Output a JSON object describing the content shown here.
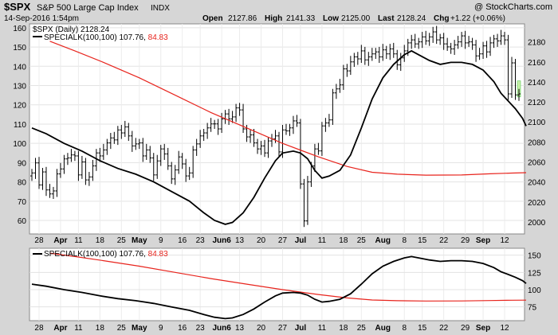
{
  "header": {
    "symbol": "$SPX",
    "name": "S&P 500 Large Cap Index",
    "exchange": "INDX",
    "copyright": "@ StockCharts.com",
    "datetime": "14-Sep-2016 1:54pm",
    "open_label": "Open",
    "open_value": "2127.86",
    "high_label": "High",
    "high_value": "2141.33",
    "low_label": "Low",
    "low_value": "2125.00",
    "last_label": "Last",
    "last_value": "2128.24",
    "chg_label": "Chg",
    "chg_value": "+1.22 (+0.06%)"
  },
  "colors": {
    "price": "#000000",
    "special_k": "#000000",
    "signal": "#e8241d",
    "last_bar_fill": "#c8f0a8",
    "panel_bg": "#ffffff",
    "frame_bg": "#d6d6d6"
  },
  "chart_data": [
    {
      "type": "ohlc",
      "panel": "main",
      "legend": [
        "$SPX (Daily) 2128.24",
        "SPECIALK(100,100) 107.76, 84.83"
      ],
      "x_tick_labels": [
        "28",
        "Apr",
        "11",
        "18",
        "25",
        "May",
        "9",
        "16",
        "23",
        "Jun6",
        "13",
        "20",
        "27",
        "Jul",
        "11",
        "18",
        "25",
        "Aug",
        "8",
        "15",
        "22",
        "29",
        "Sep",
        "12"
      ],
      "left_axis": {
        "ticks": [
          60,
          70,
          80,
          90,
          100,
          110,
          120,
          130,
          140,
          150,
          160
        ],
        "ylim": [
          53,
          162
        ]
      },
      "right_axis": {
        "ticks": [
          2000,
          2020,
          2040,
          2060,
          2080,
          2100,
          2120,
          2140,
          2160,
          2180
        ],
        "ylim": [
          1988,
          2198
        ]
      },
      "price_series": [
        [
          2049,
          2059,
          2037,
          2050,
          2032,
          2028,
          2031,
          2048,
          2053,
          2063,
          2064,
          2067,
          2066,
          2047,
          2060,
          2042,
          2045,
          2056,
          2069,
          2066,
          2072,
          2079,
          2084,
          2082,
          2092,
          2089,
          2095,
          2086,
          2076,
          2078,
          2079,
          2066,
          2072,
          2064,
          2047,
          2061,
          2073,
          2068,
          2056,
          2043,
          2052,
          2065,
          2058,
          2046,
          2049,
          2072,
          2078,
          2086,
          2089,
          2094,
          2098,
          2098,
          2093,
          2103,
          2108,
          2103,
          2105,
          2114,
          2112,
          2093,
          2085,
          2087,
          2079,
          2073,
          2076,
          2069,
          2081,
          2083,
          2086,
          2070,
          2092,
          2091,
          2094,
          2101,
          2099,
          2038,
          2001,
          2040,
          2056,
          2073,
          2071,
          2096,
          2099,
          2102,
          2129,
          2133,
          2137,
          2153,
          2151,
          2160,
          2165,
          2163,
          2171,
          2162,
          2165,
          2168,
          2170,
          2165,
          2172,
          2168,
          2173,
          2168,
          2157,
          2164,
          2171,
          2179,
          2182,
          2178,
          2180,
          2185,
          2181,
          2185,
          2190,
          2182,
          2184,
          2178,
          2175,
          2173,
          2177,
          2180,
          2186,
          2179,
          2180,
          2177,
          2166,
          2168,
          2176,
          2170,
          2179,
          2183,
          2181,
          2186,
          2182,
          2128,
          2159,
          2127,
          2128
        ],
        [
          2049,
          2059,
          2037,
          2050,
          2032,
          2028,
          2031,
          2048,
          2053,
          2063,
          2064,
          2067,
          2066,
          2047,
          2060,
          2042,
          2045,
          2056,
          2069,
          2066,
          2072,
          2079,
          2084,
          2082,
          2092,
          2089,
          2095,
          2086,
          2076,
          2078,
          2079,
          2066,
          2072,
          2064,
          2047,
          2061,
          2073,
          2068,
          2056,
          2043,
          2052,
          2065,
          2058,
          2046,
          2049,
          2072,
          2078,
          2086,
          2089,
          2094,
          2098,
          2098,
          2093,
          2103,
          2108,
          2103,
          2105,
          2114,
          2112,
          2093,
          2085,
          2087,
          2079,
          2073,
          2076,
          2069,
          2081,
          2083,
          2086,
          2070,
          2092,
          2091,
          2094,
          2101,
          2099,
          2038,
          2001,
          2040,
          2056,
          2073,
          2071,
          2096,
          2099,
          2102,
          2129,
          2133,
          2137,
          2153,
          2151,
          2160,
          2165,
          2163,
          2171,
          2162,
          2165,
          2168,
          2170,
          2165,
          2172,
          2168,
          2173,
          2168,
          2157,
          2164,
          2171,
          2179,
          2182,
          2178,
          2180,
          2185,
          2181,
          2185,
          2190,
          2182,
          2184,
          2178,
          2175,
          2173,
          2177,
          2180,
          2186,
          2179,
          2180,
          2177,
          2166,
          2168,
          2176,
          2170,
          2179,
          2183,
          2181,
          2186,
          2182,
          2128,
          2159,
          2127,
          2128
        ]
      ],
      "close_values": [
        2049,
        2059,
        2037,
        2050,
        2032,
        2028,
        2031,
        2048,
        2053,
        2063,
        2064,
        2067,
        2066,
        2047,
        2060,
        2042,
        2045,
        2056,
        2069,
        2066,
        2072,
        2079,
        2084,
        2082,
        2092,
        2089,
        2095,
        2086,
        2076,
        2078,
        2079,
        2066,
        2072,
        2064,
        2047,
        2061,
        2073,
        2068,
        2056,
        2043,
        2052,
        2065,
        2058,
        2046,
        2049,
        2072,
        2078,
        2086,
        2089,
        2094,
        2098,
        2098,
        2093,
        2103,
        2108,
        2103,
        2105,
        2114,
        2112,
        2093,
        2085,
        2087,
        2079,
        2073,
        2076,
        2069,
        2081,
        2083,
        2086,
        2070,
        2092,
        2091,
        2094,
        2101,
        2099,
        2038,
        2001,
        2040,
        2056,
        2073,
        2071,
        2096,
        2099,
        2102,
        2129,
        2133,
        2137,
        2153,
        2151,
        2160,
        2165,
        2163,
        2171,
        2162,
        2165,
        2168,
        2170,
        2165,
        2172,
        2168,
        2173,
        2168,
        2157,
        2164,
        2171,
        2179,
        2182,
        2178,
        2180,
        2185,
        2181,
        2185,
        2190,
        2182,
        2184,
        2178,
        2175,
        2173,
        2177,
        2180,
        2186,
        2179,
        2180,
        2177,
        2166,
        2168,
        2176,
        2170,
        2179,
        2183,
        2181,
        2186,
        2182,
        2128,
        2159,
        2127,
        2128
      ],
      "special_k_main": [
        {
          "x": 0,
          "y": 108
        },
        {
          "x": 4,
          "y": 105
        },
        {
          "x": 9,
          "y": 100
        },
        {
          "x": 14,
          "y": 96
        },
        {
          "x": 19,
          "y": 91
        },
        {
          "x": 24,
          "y": 87
        },
        {
          "x": 29,
          "y": 84
        },
        {
          "x": 34,
          "y": 80
        },
        {
          "x": 39,
          "y": 75
        },
        {
          "x": 44,
          "y": 70
        },
        {
          "x": 48,
          "y": 64
        },
        {
          "x": 51,
          "y": 60
        },
        {
          "x": 54,
          "y": 58
        },
        {
          "x": 56,
          "y": 59
        },
        {
          "x": 59,
          "y": 64
        },
        {
          "x": 62,
          "y": 72
        },
        {
          "x": 65,
          "y": 82
        },
        {
          "x": 68,
          "y": 91
        },
        {
          "x": 70,
          "y": 95
        },
        {
          "x": 73,
          "y": 96
        },
        {
          "x": 75,
          "y": 95
        },
        {
          "x": 77,
          "y": 92
        },
        {
          "x": 79,
          "y": 86
        },
        {
          "x": 81,
          "y": 82
        },
        {
          "x": 83,
          "y": 83
        },
        {
          "x": 86,
          "y": 86
        },
        {
          "x": 89,
          "y": 94
        },
        {
          "x": 92,
          "y": 108
        },
        {
          "x": 95,
          "y": 123
        },
        {
          "x": 98,
          "y": 134
        },
        {
          "x": 101,
          "y": 141
        },
        {
          "x": 104,
          "y": 146
        },
        {
          "x": 106,
          "y": 148
        },
        {
          "x": 108,
          "y": 146
        },
        {
          "x": 111,
          "y": 143
        },
        {
          "x": 114,
          "y": 141
        },
        {
          "x": 117,
          "y": 142
        },
        {
          "x": 120,
          "y": 142
        },
        {
          "x": 123,
          "y": 141
        },
        {
          "x": 126,
          "y": 138
        },
        {
          "x": 129,
          "y": 132
        },
        {
          "x": 131,
          "y": 126
        },
        {
          "x": 133,
          "y": 122
        },
        {
          "x": 135,
          "y": 118
        },
        {
          "x": 137,
          "y": 113
        },
        {
          "x": 138,
          "y": 109
        }
      ],
      "signal_main": [
        {
          "x": 5,
          "y": 153
        },
        {
          "x": 12,
          "y": 148
        },
        {
          "x": 20,
          "y": 142
        },
        {
          "x": 30,
          "y": 134
        },
        {
          "x": 40,
          "y": 125
        },
        {
          "x": 50,
          "y": 116
        },
        {
          "x": 60,
          "y": 108
        },
        {
          "x": 70,
          "y": 100
        },
        {
          "x": 80,
          "y": 93
        },
        {
          "x": 88,
          "y": 88
        },
        {
          "x": 95,
          "y": 85
        },
        {
          "x": 102,
          "y": 84
        },
        {
          "x": 110,
          "y": 83.5
        },
        {
          "x": 120,
          "y": 83.6
        },
        {
          "x": 128,
          "y": 84.2
        },
        {
          "x": 134,
          "y": 84.6
        },
        {
          "x": 138,
          "y": 84.8
        }
      ]
    },
    {
      "type": "line",
      "panel": "indicator",
      "legend": "SPECIALK(100,100) 107.76, 84.83",
      "series": [
        {
          "name": "SPECIALK(100,100)",
          "color": "#000000",
          "values": [
            {
              "x": 0,
              "y": 108
            },
            {
              "x": 4,
              "y": 105
            },
            {
              "x": 9,
              "y": 100
            },
            {
              "x": 14,
              "y": 96
            },
            {
              "x": 19,
              "y": 91
            },
            {
              "x": 24,
              "y": 87
            },
            {
              "x": 29,
              "y": 84
            },
            {
              "x": 34,
              "y": 80
            },
            {
              "x": 39,
              "y": 75
            },
            {
              "x": 44,
              "y": 70
            },
            {
              "x": 48,
              "y": 64
            },
            {
              "x": 51,
              "y": 60
            },
            {
              "x": 54,
              "y": 58
            },
            {
              "x": 56,
              "y": 59
            },
            {
              "x": 59,
              "y": 64
            },
            {
              "x": 62,
              "y": 72
            },
            {
              "x": 65,
              "y": 82
            },
            {
              "x": 68,
              "y": 91
            },
            {
              "x": 70,
              "y": 95
            },
            {
              "x": 73,
              "y": 96
            },
            {
              "x": 75,
              "y": 95
            },
            {
              "x": 77,
              "y": 92
            },
            {
              "x": 79,
              "y": 86
            },
            {
              "x": 81,
              "y": 82
            },
            {
              "x": 83,
              "y": 83
            },
            {
              "x": 86,
              "y": 86
            },
            {
              "x": 89,
              "y": 94
            },
            {
              "x": 92,
              "y": 108
            },
            {
              "x": 95,
              "y": 123
            },
            {
              "x": 98,
              "y": 134
            },
            {
              "x": 101,
              "y": 141
            },
            {
              "x": 104,
              "y": 146
            },
            {
              "x": 106,
              "y": 148
            },
            {
              "x": 108,
              "y": 146
            },
            {
              "x": 111,
              "y": 143
            },
            {
              "x": 114,
              "y": 141
            },
            {
              "x": 117,
              "y": 142
            },
            {
              "x": 120,
              "y": 142
            },
            {
              "x": 123,
              "y": 141
            },
            {
              "x": 126,
              "y": 138
            },
            {
              "x": 129,
              "y": 132
            },
            {
              "x": 131,
              "y": 126
            },
            {
              "x": 133,
              "y": 122
            },
            {
              "x": 135,
              "y": 118
            },
            {
              "x": 137,
              "y": 113
            },
            {
              "x": 138,
              "y": 109
            }
          ]
        },
        {
          "name": "signal",
          "color": "#e8241d",
          "values": [
            {
              "x": 5,
              "y": 153
            },
            {
              "x": 12,
              "y": 148
            },
            {
              "x": 20,
              "y": 142
            },
            {
              "x": 30,
              "y": 134
            },
            {
              "x": 40,
              "y": 125
            },
            {
              "x": 50,
              "y": 116
            },
            {
              "x": 60,
              "y": 108
            },
            {
              "x": 70,
              "y": 100
            },
            {
              "x": 80,
              "y": 93
            },
            {
              "x": 88,
              "y": 88
            },
            {
              "x": 95,
              "y": 85
            },
            {
              "x": 102,
              "y": 84
            },
            {
              "x": 110,
              "y": 83.5
            },
            {
              "x": 120,
              "y": 83.6
            },
            {
              "x": 128,
              "y": 84.2
            },
            {
              "x": 134,
              "y": 84.6
            },
            {
              "x": 138,
              "y": 84.8
            }
          ]
        }
      ],
      "right_axis": {
        "ticks": [
          75,
          100,
          125,
          150
        ],
        "ylim": [
          55,
          160
        ]
      }
    }
  ]
}
